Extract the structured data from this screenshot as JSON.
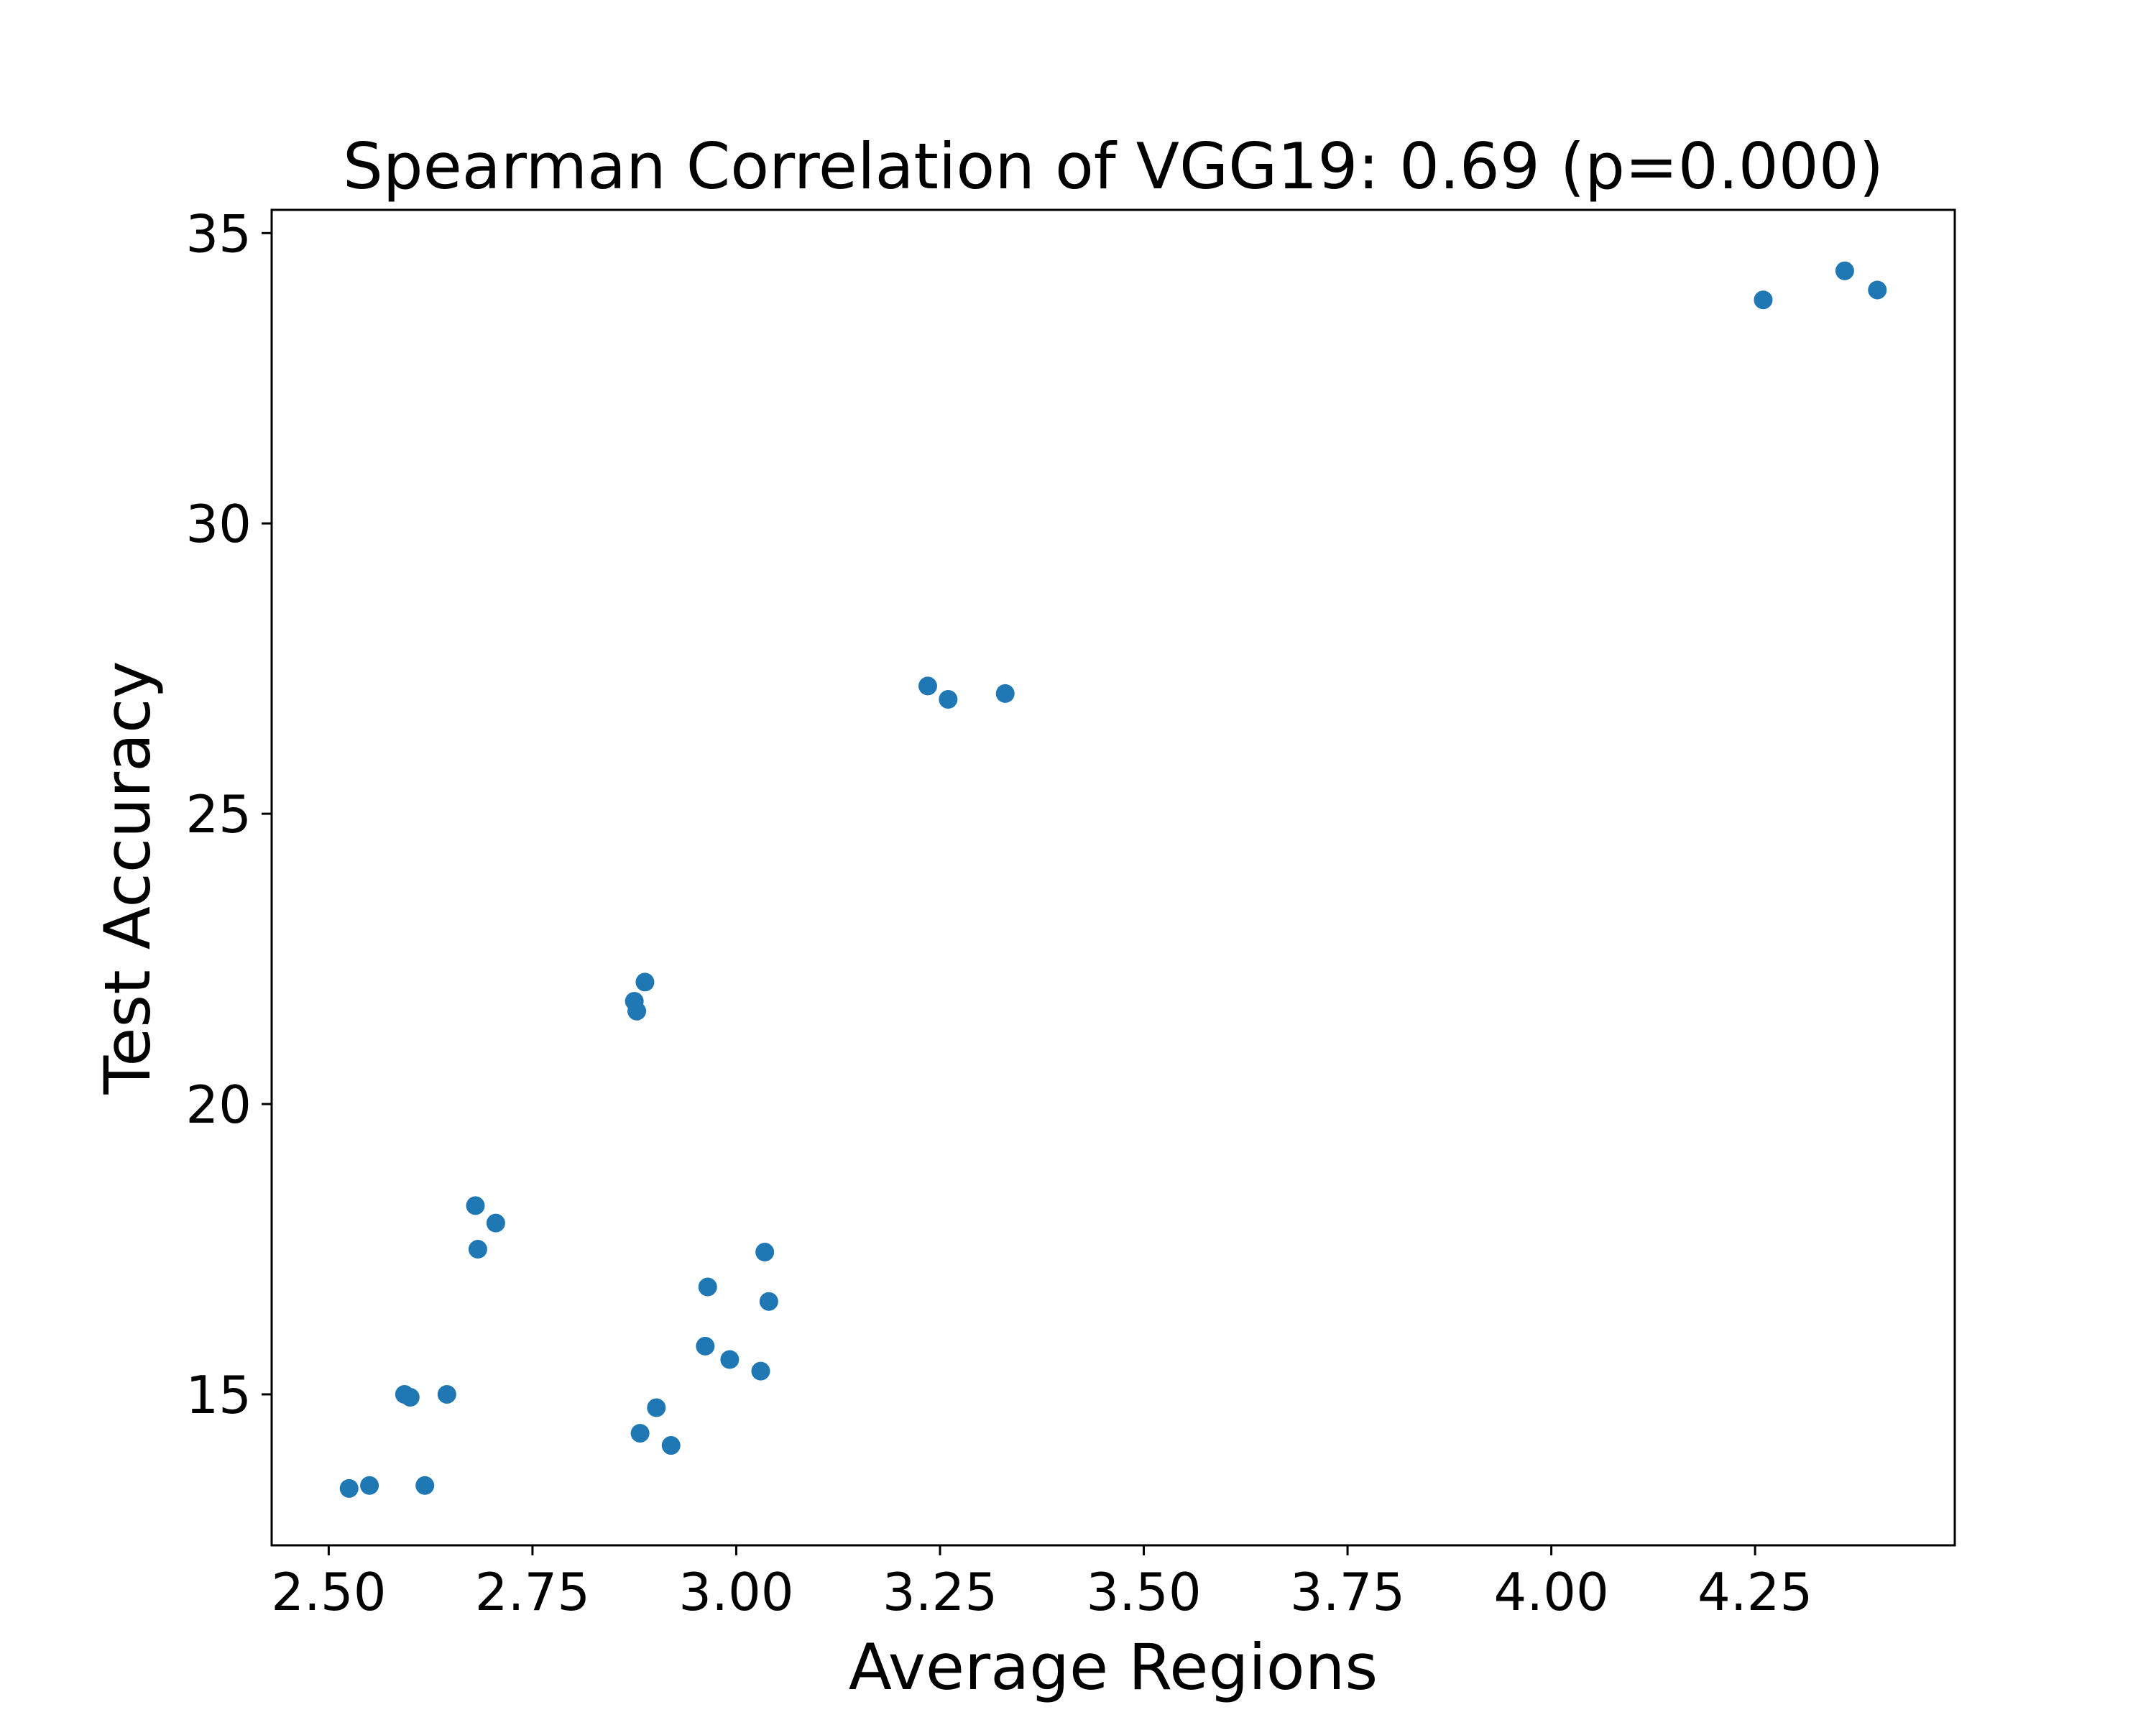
{
  "chart_data": {
    "type": "scatter",
    "title": "Spearman Correlation of VGG19: 0.69 (p=0.000)",
    "xlabel": "Average Regions",
    "ylabel": "Test Accuracy",
    "xlim": [
      2.43,
      4.495
    ],
    "ylim": [
      12.4,
      35.4
    ],
    "xticks": [
      2.5,
      2.75,
      3.0,
      3.25,
      3.5,
      3.75,
      4.0,
      4.25
    ],
    "xtick_labels": [
      "2.50",
      "2.75",
      "3.00",
      "3.25",
      "3.50",
      "3.75",
      "4.00",
      "4.25"
    ],
    "yticks": [
      15,
      20,
      25,
      30,
      35
    ],
    "ytick_labels": [
      "15",
      "20",
      "25",
      "30",
      "35"
    ],
    "grid": false,
    "marker_color": "#1f77b4",
    "series": [
      {
        "points": [
          {
            "x": 4.26,
            "y": 33.85
          },
          {
            "x": 4.36,
            "y": 34.35
          },
          {
            "x": 4.4,
            "y": 34.02
          },
          {
            "x": 3.235,
            "y": 27.2
          },
          {
            "x": 3.26,
            "y": 26.97
          },
          {
            "x": 3.33,
            "y": 27.07
          },
          {
            "x": 2.875,
            "y": 21.77
          },
          {
            "x": 2.878,
            "y": 21.6
          },
          {
            "x": 2.888,
            "y": 22.1
          },
          {
            "x": 2.68,
            "y": 18.25
          },
          {
            "x": 2.705,
            "y": 17.95
          },
          {
            "x": 2.683,
            "y": 17.5
          },
          {
            "x": 3.035,
            "y": 17.45
          },
          {
            "x": 2.965,
            "y": 16.85
          },
          {
            "x": 3.04,
            "y": 16.6
          },
          {
            "x": 2.962,
            "y": 15.83
          },
          {
            "x": 2.992,
            "y": 15.6
          },
          {
            "x": 3.03,
            "y": 15.4
          },
          {
            "x": 2.593,
            "y": 15.0
          },
          {
            "x": 2.6,
            "y": 14.95
          },
          {
            "x": 2.645,
            "y": 15.0
          },
          {
            "x": 2.902,
            "y": 14.77
          },
          {
            "x": 2.882,
            "y": 14.33
          },
          {
            "x": 2.92,
            "y": 14.12
          },
          {
            "x": 2.525,
            "y": 13.38
          },
          {
            "x": 2.55,
            "y": 13.43
          },
          {
            "x": 2.618,
            "y": 13.43
          }
        ]
      }
    ]
  }
}
